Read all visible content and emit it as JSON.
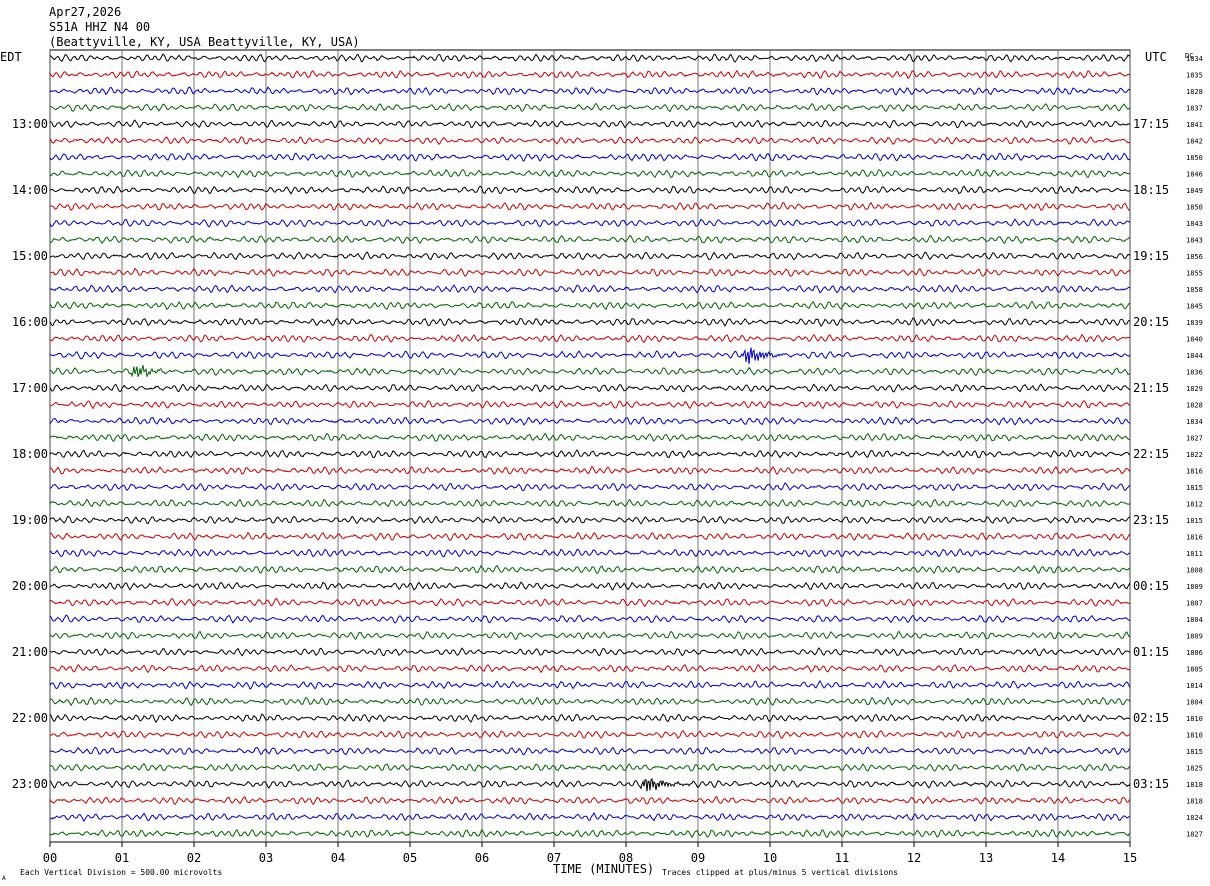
{
  "header": {
    "date": "Apr27,2026",
    "station": "S51A HHZ N4 00",
    "location": "(Beattyville, KY, USA Beattyville, KY, USA)"
  },
  "labels": {
    "left_tz": "EDT",
    "right_tz": "UTC",
    "dc_header": "DC",
    "x_axis_title": "TIME (MINUTES)",
    "scale_note": "Each Vertical Division =  500.00 microvolts",
    "clip_note": "Traces clipped at plus/minus 5 vertical divisions",
    "corner_mark": "A"
  },
  "colors": {
    "trace_cycle": [
      "#000000",
      "#cc0000",
      "#0000cc",
      "#006400"
    ],
    "grid": "#000000",
    "background": "#ffffff"
  },
  "chart_data": {
    "type": "line",
    "title": "S51A HHZ N4 00",
    "xlabel": "TIME (MINUTES)",
    "xlim": [
      0,
      15
    ],
    "x_ticks": [
      "00",
      "01",
      "02",
      "03",
      "04",
      "05",
      "06",
      "07",
      "08",
      "09",
      "10",
      "11",
      "12",
      "13",
      "14",
      "15"
    ],
    "left_hour_labels": [
      "13:00",
      "14:00",
      "15:00",
      "16:00",
      "17:00",
      "18:00",
      "19:00",
      "20:00",
      "21:00",
      "22:00",
      "23:00"
    ],
    "right_hour_labels": [
      "17:15",
      "18:15",
      "19:15",
      "20:15",
      "21:15",
      "22:15",
      "23:15",
      "00:15",
      "01:15",
      "02:15",
      "03:15"
    ],
    "traces_before_first_hour": 4,
    "traces_per_hour": 4,
    "trace_dc_values": [
      "1834",
      "1835",
      "1828",
      "1837",
      "1841",
      "1842",
      "1850",
      "1846",
      "1849",
      "1850",
      "1843",
      "1843",
      "1856",
      "1855",
      "1858",
      "1845",
      "1839",
      "1840",
      "1844",
      "1836",
      "1829",
      "1828",
      "1834",
      "1827",
      "1822",
      "1816",
      "1815",
      "1812",
      "1815",
      "1816",
      "1811",
      "1808",
      "1809",
      "1807",
      "1804",
      "1809",
      "1806",
      "1805",
      "1814",
      "1804",
      "1810",
      "1810",
      "1815",
      "1825",
      "1818",
      "1818",
      "1824",
      "1827"
    ],
    "events": [
      {
        "trace": 18,
        "minute": 9.7,
        "amplitude": 2.0
      },
      {
        "trace": 19,
        "minute": 1.2,
        "amplitude": 1.4
      },
      {
        "trace": 44,
        "minute": 8.3,
        "amplitude": 1.9
      }
    ]
  }
}
